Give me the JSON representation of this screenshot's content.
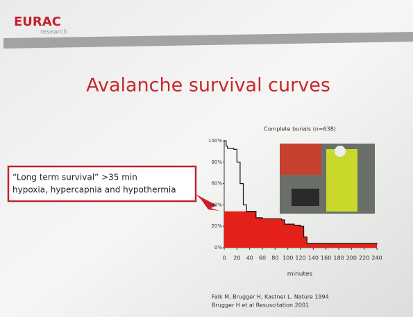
{
  "slide": {
    "logo": "EURAC",
    "logo_sub": "research",
    "title": "Avalanche survival curves",
    "callout": [
      "“Long term survival” >35 min",
      "hypoxia, hypercapnia and hypothermia"
    ],
    "references": [
      "Falk M, Brugger H, Kastner L. Nature 1994",
      "Brugger H et al Resuscitation 2001"
    ]
  },
  "chart_data": {
    "type": "line",
    "title": "Complete burials (n=638)",
    "x_label": "minutes",
    "xlim": [
      0,
      240
    ],
    "ylim": [
      0,
      100
    ],
    "xticks": [
      0,
      20,
      40,
      60,
      80,
      100,
      120,
      140,
      160,
      180,
      200,
      220,
      240
    ],
    "yticks": [
      {
        "value": 0,
        "label": "0%"
      },
      {
        "value": 20,
        "label": "20%"
      },
      {
        "value": 40,
        "label": "40%"
      },
      {
        "value": 60,
        "label": "60%"
      },
      {
        "value": 80,
        "label": "80%"
      },
      {
        "value": 100,
        "label": "100%"
      }
    ],
    "series": [
      {
        "color": "#e32119",
        "fill": true,
        "x": [
          0,
          35,
          45,
          50,
          60,
          90,
          95,
          110,
          120,
          125,
          130,
          240
        ],
        "values": [
          34,
          34,
          34,
          28,
          27,
          26,
          22,
          21,
          20,
          10,
          4,
          3
        ]
      },
      {
        "color": "#111111",
        "fill": false,
        "x": [
          0,
          3,
          5,
          15,
          20,
          25,
          30,
          35,
          45,
          50,
          60,
          90,
          95,
          110,
          120,
          125,
          130,
          240
        ],
        "values": [
          100,
          95,
          93,
          92,
          80,
          60,
          40,
          34,
          34,
          28,
          27,
          26,
          22,
          21,
          20,
          10,
          4,
          3
        ]
      }
    ]
  }
}
